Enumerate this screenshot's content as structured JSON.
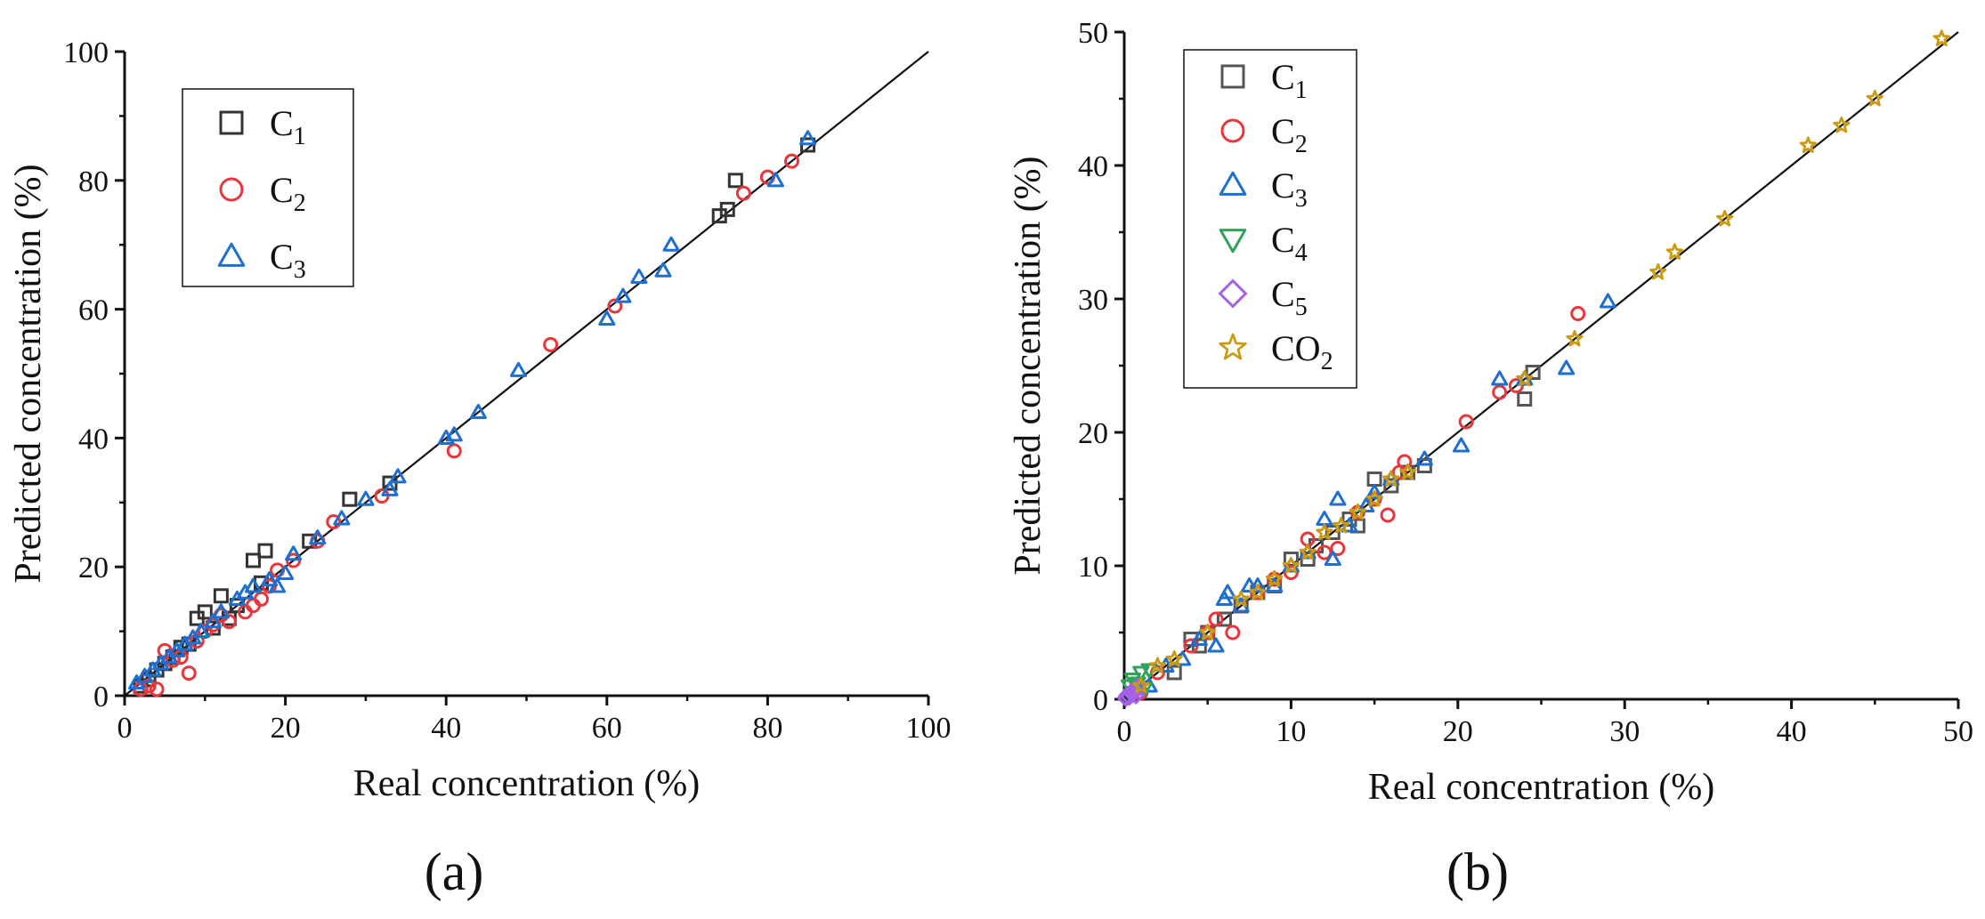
{
  "chart_data": [
    {
      "type": "scatter",
      "panel_label": "(a)",
      "xlabel": "Real concentration (%)",
      "ylabel": "Predicted concentration (%)",
      "xlim": [
        0,
        100
      ],
      "ylim": [
        0,
        100
      ],
      "x_ticks": [
        "0",
        "20",
        "40",
        "60",
        "80",
        "100"
      ],
      "y_ticks": [
        "0",
        "20",
        "40",
        "60",
        "80",
        "100"
      ],
      "reference_line": {
        "from": [
          0,
          0
        ],
        "to": [
          100,
          100
        ]
      },
      "legend_position": "top-left",
      "series": [
        {
          "name": "C1",
          "base": "C",
          "sub": "1",
          "marker": "square",
          "color": "#333333",
          "points": [
            [
              2,
              1.5
            ],
            [
              3,
              2.5
            ],
            [
              4,
              4
            ],
            [
              5,
              5
            ],
            [
              6,
              6
            ],
            [
              7,
              7.5
            ],
            [
              8,
              8
            ],
            [
              9,
              12
            ],
            [
              10,
              13
            ],
            [
              11,
              10.5
            ],
            [
              12,
              15.5
            ],
            [
              13,
              12
            ],
            [
              14,
              14
            ],
            [
              16,
              21
            ],
            [
              17,
              17.5
            ],
            [
              17.5,
              22.5
            ],
            [
              23,
              24
            ],
            [
              28,
              30.5
            ],
            [
              33,
              33
            ],
            [
              74,
              74.5
            ],
            [
              75,
              75.5
            ],
            [
              76,
              80
            ],
            [
              85,
              85.5
            ]
          ]
        },
        {
          "name": "C2",
          "base": "C",
          "sub": "2",
          "marker": "circle",
          "color": "#e8363a",
          "points": [
            [
              2,
              1
            ],
            [
              3,
              1.5
            ],
            [
              4,
              1
            ],
            [
              5,
              7
            ],
            [
              6,
              5.5
            ],
            [
              7,
              6
            ],
            [
              8,
              3.5
            ],
            [
              9,
              8.5
            ],
            [
              10,
              10
            ],
            [
              11,
              11
            ],
            [
              12,
              12.5
            ],
            [
              13,
              11.5
            ],
            [
              15,
              13
            ],
            [
              16,
              14
            ],
            [
              17,
              15
            ],
            [
              18,
              17
            ],
            [
              19,
              19.5
            ],
            [
              21,
              21
            ],
            [
              24,
              24
            ],
            [
              26,
              27
            ],
            [
              32,
              31
            ],
            [
              41,
              38
            ],
            [
              53,
              54.5
            ],
            [
              61,
              60.5
            ],
            [
              77,
              78
            ],
            [
              80,
              80.5
            ],
            [
              83,
              83
            ]
          ]
        },
        {
          "name": "C3",
          "base": "C",
          "sub": "3",
          "marker": "triangle-up",
          "color": "#1e6fd0",
          "points": [
            [
              1.5,
              2
            ],
            [
              2.5,
              3
            ],
            [
              3.5,
              4
            ],
            [
              4.5,
              5
            ],
            [
              5.5,
              6
            ],
            [
              6.5,
              7
            ],
            [
              7.5,
              8
            ],
            [
              8.5,
              9
            ],
            [
              9.5,
              10
            ],
            [
              11,
              11.5
            ],
            [
              12,
              13
            ],
            [
              14,
              15
            ],
            [
              15,
              16
            ],
            [
              16,
              17
            ],
            [
              18,
              18
            ],
            [
              19,
              17
            ],
            [
              20,
              19
            ],
            [
              21,
              22
            ],
            [
              24,
              24.5
            ],
            [
              27,
              27.5
            ],
            [
              30,
              30.5
            ],
            [
              33,
              32
            ],
            [
              34,
              34
            ],
            [
              40,
              40
            ],
            [
              41,
              40.5
            ],
            [
              44,
              44
            ],
            [
              49,
              50.5
            ],
            [
              60,
              58.5
            ],
            [
              62,
              62
            ],
            [
              64,
              65
            ],
            [
              67,
              66
            ],
            [
              68,
              70
            ],
            [
              81,
              80
            ],
            [
              85,
              86.5
            ]
          ]
        }
      ]
    },
    {
      "type": "scatter",
      "panel_label": "(b)",
      "xlabel": "Real concentration (%)",
      "ylabel": "Predicted concentration (%)",
      "xlim": [
        0,
        50
      ],
      "ylim": [
        0,
        50
      ],
      "x_ticks": [
        "0",
        "10",
        "20",
        "30",
        "40",
        "50"
      ],
      "y_ticks": [
        "0",
        "10",
        "20",
        "30",
        "40",
        "50"
      ],
      "reference_line": {
        "from": [
          0,
          0
        ],
        "to": [
          50,
          50
        ]
      },
      "legend_position": "top-left",
      "series": [
        {
          "name": "C1",
          "base": "C",
          "sub": "1",
          "marker": "square",
          "color": "#555555",
          "points": [
            [
              3,
              2
            ],
            [
              4,
              4.5
            ],
            [
              4.5,
              4
            ],
            [
              5,
              5
            ],
            [
              6,
              6
            ],
            [
              7,
              7
            ],
            [
              8,
              8
            ],
            [
              9,
              8.5
            ],
            [
              10,
              10.5
            ],
            [
              11,
              10.5
            ],
            [
              11.5,
              11.5
            ],
            [
              12.5,
              12.5
            ],
            [
              13.5,
              13.5
            ],
            [
              14,
              13
            ],
            [
              15,
              16.5
            ],
            [
              16,
              16
            ],
            [
              17,
              17
            ],
            [
              18,
              17.5
            ],
            [
              24,
              22.5
            ],
            [
              24.5,
              24.5
            ]
          ]
        },
        {
          "name": "C2",
          "base": "C",
          "sub": "2",
          "marker": "circle",
          "color": "#e8363a",
          "points": [
            [
              1,
              0.5
            ],
            [
              2,
              2
            ],
            [
              4,
              4
            ],
            [
              5,
              5
            ],
            [
              5.5,
              6
            ],
            [
              6.5,
              5
            ],
            [
              8,
              8
            ],
            [
              9,
              9
            ],
            [
              10,
              9.5
            ],
            [
              11,
              12
            ],
            [
              12,
              11
            ],
            [
              12.8,
              11.3
            ],
            [
              14,
              14
            ],
            [
              15,
              15
            ],
            [
              15.8,
              13.8
            ],
            [
              16.5,
              17
            ],
            [
              16.8,
              17.8
            ],
            [
              20.5,
              20.8
            ],
            [
              22.5,
              23
            ],
            [
              23.5,
              23.5
            ],
            [
              27.2,
              28.9
            ]
          ]
        },
        {
          "name": "C3",
          "base": "C",
          "sub": "3",
          "marker": "triangle-up",
          "color": "#1e6fd0",
          "points": [
            [
              1.5,
              1
            ],
            [
              2.5,
              2.5
            ],
            [
              3.5,
              3
            ],
            [
              4.5,
              4.5
            ],
            [
              5.5,
              4
            ],
            [
              6,
              7.5
            ],
            [
              6.2,
              8
            ],
            [
              7,
              7
            ],
            [
              7.5,
              8.5
            ],
            [
              8,
              8.5
            ],
            [
              9,
              8.5
            ],
            [
              10,
              10
            ],
            [
              11,
              11
            ],
            [
              12,
              13.5
            ],
            [
              12.5,
              10.5
            ],
            [
              12.8,
              15
            ],
            [
              13.5,
              13
            ],
            [
              14.5,
              14.5
            ],
            [
              15,
              15.5
            ],
            [
              16,
              16.5
            ],
            [
              18,
              18
            ],
            [
              20.2,
              19
            ],
            [
              22.5,
              24
            ],
            [
              24,
              24
            ],
            [
              26.5,
              24.8
            ],
            [
              29,
              29.8
            ]
          ]
        },
        {
          "name": "C4",
          "base": "C",
          "sub": "4",
          "marker": "triangle-down",
          "color": "#2ea35a",
          "points": [
            [
              0.3,
              1
            ],
            [
              0.5,
              1.5
            ],
            [
              0.6,
              0.5
            ],
            [
              0.8,
              1.2
            ],
            [
              1,
              2
            ],
            [
              1.2,
              0.8
            ],
            [
              0.4,
              0.3
            ],
            [
              1.5,
              2.2
            ]
          ]
        },
        {
          "name": "C5",
          "base": "C",
          "sub": "5",
          "marker": "diamond",
          "color": "#a560e8",
          "points": [
            [
              0.1,
              0.1
            ],
            [
              0.2,
              0.3
            ],
            [
              0.3,
              0.2
            ],
            [
              0.4,
              0.5
            ],
            [
              0.5,
              0.4
            ],
            [
              0.6,
              0.7
            ],
            [
              0.7,
              0.3
            ],
            [
              0.8,
              0.9
            ]
          ]
        },
        {
          "name": "CO2",
          "base": "CO",
          "sub": "2",
          "marker": "star",
          "color": "#c99a12",
          "points": [
            [
              1,
              1
            ],
            [
              2,
              2.5
            ],
            [
              3,
              3
            ],
            [
              5,
              5
            ],
            [
              7,
              7.5
            ],
            [
              8,
              8
            ],
            [
              9,
              9
            ],
            [
              10,
              10
            ],
            [
              11,
              11
            ],
            [
              12,
              12.5
            ],
            [
              13,
              13
            ],
            [
              14,
              14
            ],
            [
              15,
              15
            ],
            [
              16,
              16.5
            ],
            [
              17,
              17
            ],
            [
              24,
              24
            ],
            [
              27,
              27
            ],
            [
              32,
              32
            ],
            [
              33,
              33.5
            ],
            [
              36,
              36
            ],
            [
              41,
              41.5
            ],
            [
              43,
              43
            ],
            [
              45,
              45
            ],
            [
              49,
              49.5
            ]
          ]
        }
      ]
    }
  ]
}
